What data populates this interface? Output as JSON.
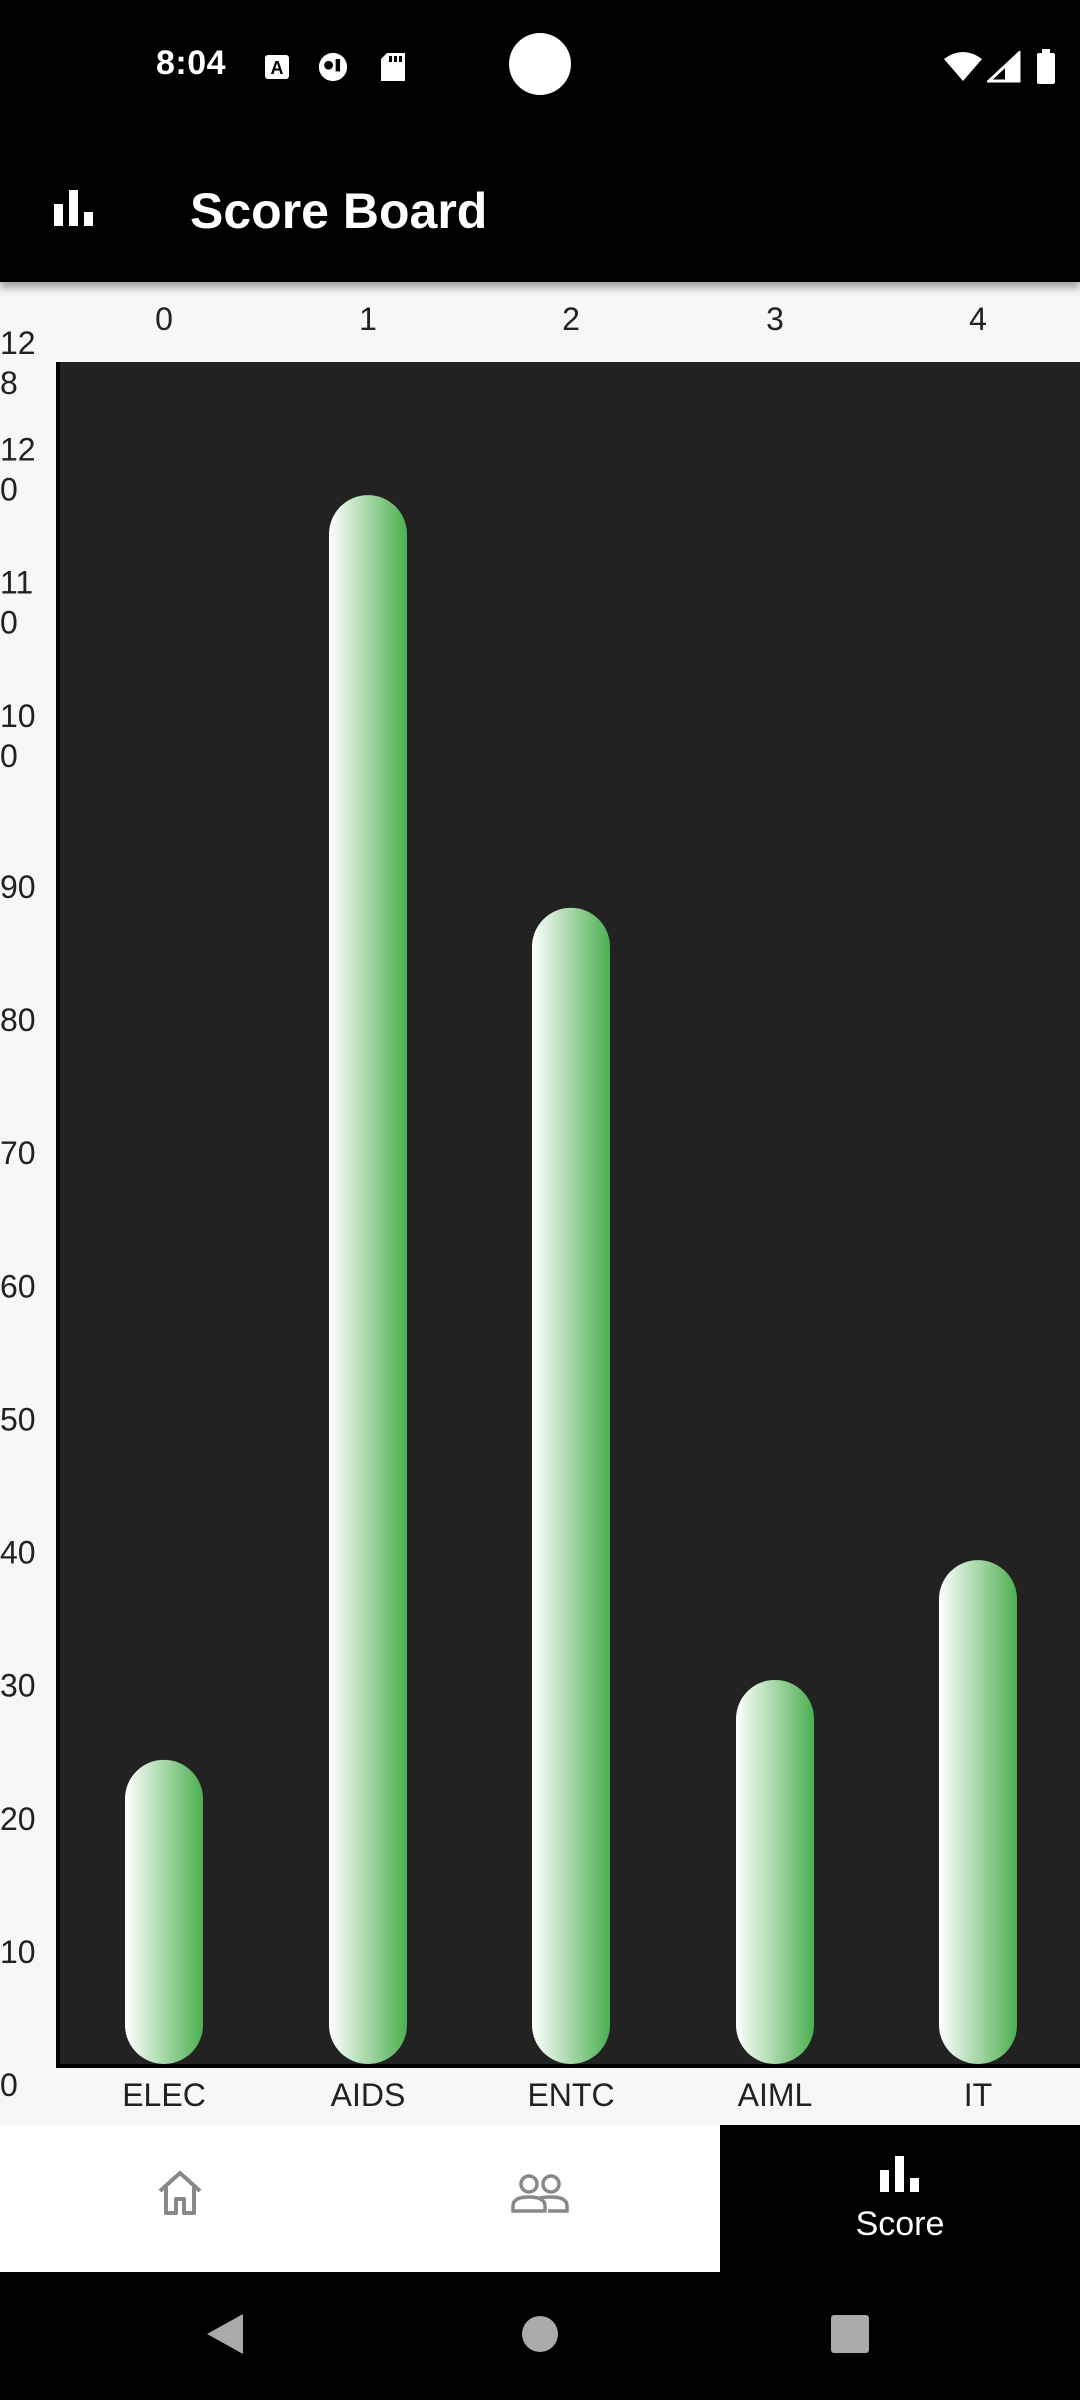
{
  "status_bar": {
    "time": "8:04",
    "left_icons": [
      "a-icon",
      "face-icon",
      "sd-card-icon"
    ],
    "right_icons": [
      "wifi-icon",
      "signal-icon",
      "battery-icon"
    ]
  },
  "app_bar": {
    "icon": "bar-chart-icon",
    "title": "Score Board"
  },
  "chart_data": {
    "type": "bar",
    "categories": [
      "ELEC",
      "AIDS",
      "ENTC",
      "AIML",
      "IT"
    ],
    "index_labels": [
      "0",
      "1",
      "2",
      "3",
      "4"
    ],
    "values": [
      23,
      118,
      87,
      29,
      38
    ],
    "y_ticks": [
      "0",
      "10",
      "20",
      "30",
      "40",
      "50",
      "60",
      "70",
      "80",
      "90",
      "100",
      "110",
      "120",
      "128"
    ],
    "ylim": [
      0,
      128
    ],
    "bar_colors": [
      "#ffffff",
      "#4caf50"
    ],
    "plot_background": "#222222"
  },
  "bottom_nav": {
    "items": [
      {
        "icon": "home-icon",
        "label": ""
      },
      {
        "icon": "people-icon",
        "label": ""
      },
      {
        "icon": "bar-chart-icon",
        "label": "Score"
      }
    ]
  },
  "system_nav": {
    "buttons": [
      "back-icon",
      "home-circle-icon",
      "recents-icon"
    ]
  }
}
